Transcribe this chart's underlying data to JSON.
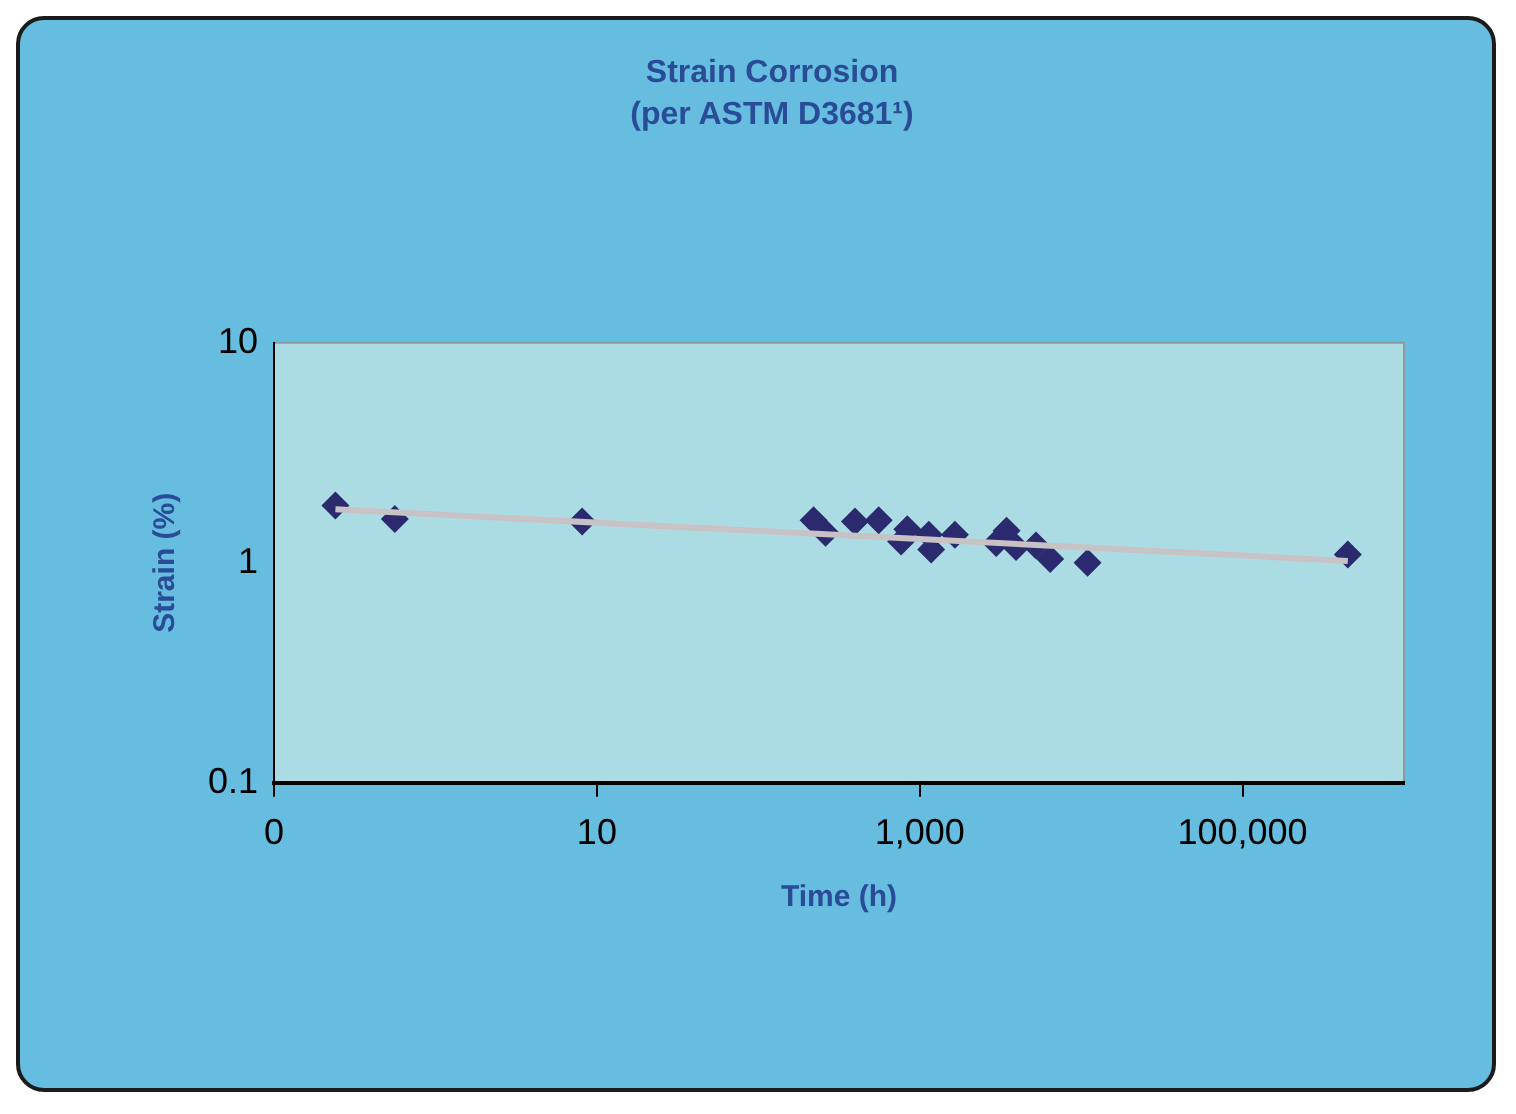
{
  "chart_data": {
    "type": "scatter",
    "title": "Strain Corrosion",
    "subtitle": "(per ASTM D3681¹)",
    "xlabel": "Time (h)",
    "ylabel": "Strain (%)",
    "log": "xy",
    "grid": false,
    "legend": false,
    "xlim": [
      0.1,
      1000000
    ],
    "xticks": [
      {
        "value": 0.1,
        "label": "0"
      },
      10,
      {
        "value": 1000,
        "label": "1,000"
      },
      {
        "value": 100000,
        "label": "100,000"
      }
    ],
    "ylim": [
      0.1,
      10
    ],
    "yticks": [
      0.1,
      1,
      10
    ],
    "series": [
      {
        "type": "scatter",
        "marker": "diamond",
        "color": "#2b2a6e",
        "x": [
          0.24,
          0.56,
          8.1,
          220,
          261,
          397,
          557,
          838,
          766,
          1178,
          1138,
          1653,
          2977,
          3450,
          3950,
          5250,
          6430,
          10960,
          448700
        ],
        "values": [
          1.82,
          1.58,
          1.54,
          1.56,
          1.37,
          1.54,
          1.56,
          1.42,
          1.25,
          1.15,
          1.34,
          1.34,
          1.23,
          1.4,
          1.18,
          1.2,
          1.04,
          1.0,
          1.09
        ]
      },
      {
        "type": "line",
        "marker": "none",
        "color": "#c8c2c4",
        "x": [
          0.24,
          448700
        ],
        "values": [
          1.75,
          1.02
        ]
      }
    ]
  }
}
